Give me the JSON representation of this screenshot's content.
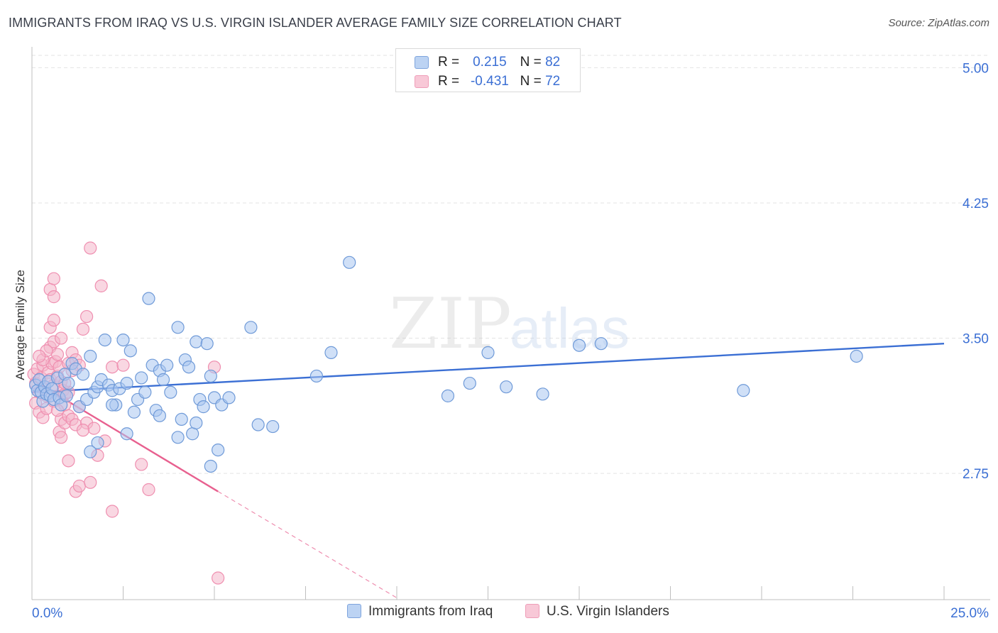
{
  "title": "IMMIGRANTS FROM IRAQ VS U.S. VIRGIN ISLANDER AVERAGE FAMILY SIZE CORRELATION CHART",
  "source": "Source: ZipAtlas.com",
  "watermark": {
    "zip": "ZIP",
    "atlas": "atlas"
  },
  "legend": {
    "series1": {
      "r_label": "R =",
      "r_value": "0.215",
      "n_label": "N =",
      "n_value": "82"
    },
    "series2": {
      "r_label": "R =",
      "r_value": "-0.431",
      "n_label": "N =",
      "n_value": "72"
    }
  },
  "colors": {
    "blue": "#3b6fd4",
    "blue_fill": "#a9c6f0",
    "blue_edge": "#6f9ad8",
    "pink": "#e8608f",
    "pink_fill": "#f4b7cb",
    "pink_edge": "#ef8fb0",
    "grid": "#e3e3e3",
    "tick_label": "#3b6fd4"
  },
  "chart_data": {
    "type": "scatter",
    "title": "IMMIGRANTS FROM IRAQ VS U.S. VIRGIN ISLANDER AVERAGE FAMILY SIZE CORRELATION CHART",
    "xlabel": "",
    "ylabel": "Average Family Size",
    "xlim": [
      0,
      25
    ],
    "ylim": [
      2.05,
      5.1
    ],
    "x_tick_labels": [
      "0.0%",
      "25.0%"
    ],
    "y_ticks": [
      2.75,
      3.5,
      4.25,
      5.0
    ],
    "y_tick_labels": [
      "2.75",
      "3.50",
      "4.25",
      "5.00"
    ],
    "series": [
      {
        "name": "Immigrants from Iraq",
        "color": "#3b6fd4",
        "trend": {
          "x0": 0,
          "y0": 3.2,
          "x1": 25,
          "y1": 3.47,
          "dashed_to": null
        },
        "points": [
          [
            0.1,
            3.24
          ],
          [
            0.15,
            3.21
          ],
          [
            0.2,
            3.27
          ],
          [
            0.25,
            3.2
          ],
          [
            0.3,
            3.15
          ],
          [
            0.35,
            3.23
          ],
          [
            0.4,
            3.19
          ],
          [
            0.45,
            3.26
          ],
          [
            0.5,
            3.18
          ],
          [
            0.55,
            3.22
          ],
          [
            0.6,
            3.16
          ],
          [
            0.7,
            3.28
          ],
          [
            0.75,
            3.17
          ],
          [
            0.8,
            3.13
          ],
          [
            0.9,
            3.3
          ],
          [
            0.95,
            3.18
          ],
          [
            1.0,
            3.25
          ],
          [
            1.1,
            3.36
          ],
          [
            1.2,
            3.33
          ],
          [
            1.3,
            3.12
          ],
          [
            1.4,
            3.3
          ],
          [
            1.5,
            3.16
          ],
          [
            1.6,
            3.4
          ],
          [
            1.7,
            3.2
          ],
          [
            1.8,
            3.23
          ],
          [
            1.9,
            3.27
          ],
          [
            2.0,
            3.49
          ],
          [
            2.1,
            3.24
          ],
          [
            2.2,
            3.21
          ],
          [
            2.3,
            3.13
          ],
          [
            2.4,
            3.22
          ],
          [
            2.5,
            3.49
          ],
          [
            2.6,
            3.25
          ],
          [
            2.7,
            3.43
          ],
          [
            2.8,
            3.09
          ],
          [
            2.9,
            3.16
          ],
          [
            3.0,
            3.28
          ],
          [
            3.1,
            3.2
          ],
          [
            3.2,
            3.72
          ],
          [
            3.3,
            3.35
          ],
          [
            3.4,
            3.1
          ],
          [
            3.5,
            3.32
          ],
          [
            3.6,
            3.27
          ],
          [
            3.7,
            3.35
          ],
          [
            3.8,
            3.2
          ],
          [
            4.0,
            3.56
          ],
          [
            4.1,
            3.05
          ],
          [
            4.2,
            3.38
          ],
          [
            4.3,
            3.34
          ],
          [
            4.4,
            2.97
          ],
          [
            4.5,
            3.48
          ],
          [
            4.6,
            3.16
          ],
          [
            4.7,
            3.12
          ],
          [
            4.8,
            3.47
          ],
          [
            4.9,
            3.29
          ],
          [
            5.0,
            3.17
          ],
          [
            5.2,
            3.13
          ],
          [
            5.4,
            3.17
          ],
          [
            5.1,
            2.88
          ],
          [
            4.0,
            2.95
          ],
          [
            3.5,
            3.07
          ],
          [
            2.6,
            2.97
          ],
          [
            1.8,
            2.92
          ],
          [
            1.6,
            2.87
          ],
          [
            4.5,
            3.03
          ],
          [
            6.0,
            3.56
          ],
          [
            6.2,
            3.02
          ],
          [
            6.6,
            3.01
          ],
          [
            7.8,
            3.29
          ],
          [
            8.2,
            3.42
          ],
          [
            8.7,
            3.92
          ],
          [
            11.4,
            3.18
          ],
          [
            12.0,
            3.25
          ],
          [
            12.5,
            3.42
          ],
          [
            13.0,
            3.23
          ],
          [
            14.0,
            3.19
          ],
          [
            15.0,
            3.46
          ],
          [
            15.6,
            3.47
          ],
          [
            19.5,
            3.21
          ],
          [
            22.6,
            3.4
          ],
          [
            4.9,
            2.79
          ],
          [
            2.2,
            3.13
          ]
        ]
      },
      {
        "name": "U.S. Virgin Islanders",
        "color": "#e8608f",
        "trend": {
          "x0": 0,
          "y0": 3.27,
          "x1": 5.1,
          "y1": 2.65,
          "dashed_to": {
            "x": 10.0,
            "y": 2.06
          }
        },
        "points": [
          [
            0.05,
            3.3
          ],
          [
            0.1,
            3.25
          ],
          [
            0.15,
            3.33
          ],
          [
            0.2,
            3.2
          ],
          [
            0.25,
            3.28
          ],
          [
            0.3,
            3.35
          ],
          [
            0.35,
            3.22
          ],
          [
            0.4,
            3.18
          ],
          [
            0.45,
            3.31
          ],
          [
            0.5,
            3.27
          ],
          [
            0.55,
            3.36
          ],
          [
            0.6,
            3.24
          ],
          [
            0.65,
            3.37
          ],
          [
            0.7,
            3.29
          ],
          [
            0.75,
            3.34
          ],
          [
            0.8,
            3.26
          ],
          [
            0.85,
            3.21
          ],
          [
            0.9,
            3.19
          ],
          [
            0.1,
            3.14
          ],
          [
            0.2,
            3.09
          ],
          [
            0.3,
            3.06
          ],
          [
            0.4,
            3.11
          ],
          [
            0.5,
            3.45
          ],
          [
            0.6,
            3.48
          ],
          [
            0.7,
            3.41
          ],
          [
            0.8,
            3.5
          ],
          [
            0.5,
            3.56
          ],
          [
            0.6,
            3.6
          ],
          [
            0.5,
            3.77
          ],
          [
            0.6,
            3.73
          ],
          [
            0.6,
            3.83
          ],
          [
            1.0,
            3.36
          ],
          [
            1.1,
            3.42
          ],
          [
            1.2,
            3.38
          ],
          [
            1.0,
            3.2
          ],
          [
            0.9,
            3.13
          ],
          [
            0.8,
            3.05
          ],
          [
            0.75,
            2.98
          ],
          [
            0.8,
            2.95
          ],
          [
            0.9,
            3.03
          ],
          [
            1.0,
            3.07
          ],
          [
            1.1,
            3.05
          ],
          [
            1.2,
            3.02
          ],
          [
            1.3,
            3.35
          ],
          [
            1.4,
            3.55
          ],
          [
            1.5,
            3.62
          ],
          [
            1.0,
            2.82
          ],
          [
            1.2,
            2.65
          ],
          [
            1.3,
            2.68
          ],
          [
            1.6,
            2.7
          ],
          [
            1.8,
            2.85
          ],
          [
            2.0,
            2.93
          ],
          [
            1.5,
            3.03
          ],
          [
            1.7,
            3.0
          ],
          [
            2.2,
            3.34
          ],
          [
            1.9,
            3.79
          ],
          [
            1.6,
            4.0
          ],
          [
            2.5,
            3.35
          ],
          [
            2.2,
            2.54
          ],
          [
            3.0,
            2.8
          ],
          [
            3.2,
            2.66
          ],
          [
            5.0,
            3.34
          ],
          [
            5.1,
            2.17
          ],
          [
            0.3,
            3.38
          ],
          [
            0.4,
            3.43
          ],
          [
            1.1,
            3.32
          ],
          [
            1.3,
            3.12
          ],
          [
            0.2,
            3.4
          ],
          [
            0.6,
            3.15
          ],
          [
            0.7,
            3.1
          ],
          [
            1.4,
            2.99
          ],
          [
            0.9,
            3.25
          ]
        ]
      }
    ],
    "legend_entries": [
      "Immigrants from Iraq",
      "U.S. Virgin Islanders"
    ],
    "legend_position": "top-center",
    "grid": true
  }
}
